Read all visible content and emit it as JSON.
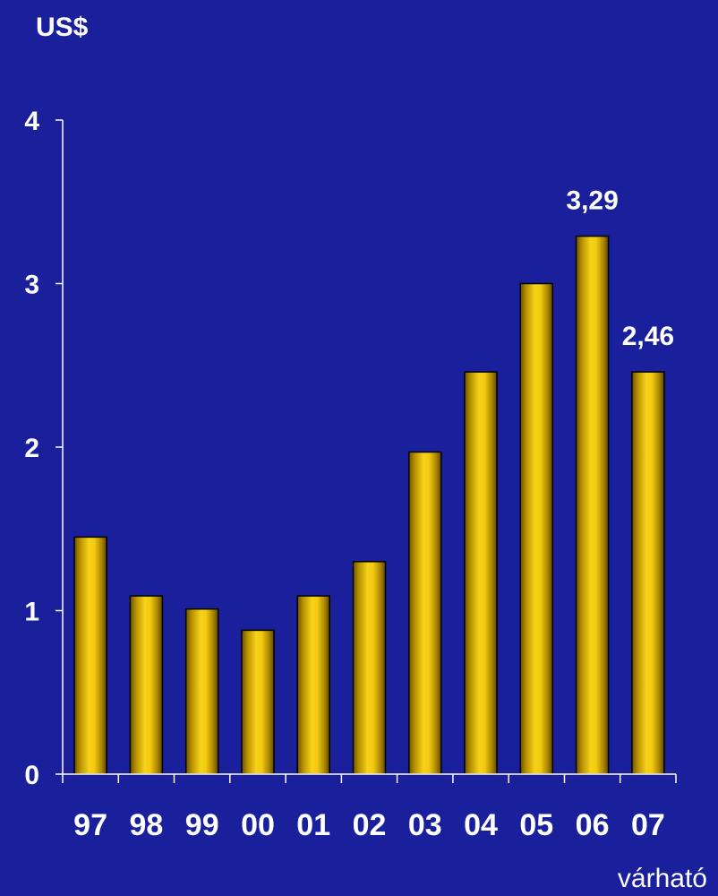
{
  "chart_data": {
    "type": "bar",
    "ylabel": "US$",
    "categories": [
      "97",
      "98",
      "99",
      "00",
      "01",
      "02",
      "03",
      "04",
      "05",
      "06",
      "07"
    ],
    "values": [
      1.45,
      1.09,
      1.01,
      0.88,
      1.09,
      1.3,
      1.97,
      2.46,
      3.0,
      3.29,
      2.46
    ],
    "data_labels": [
      {
        "category": "06",
        "text": "3,29"
      },
      {
        "category": "07",
        "text": "2,46"
      }
    ],
    "ylim": [
      0,
      4
    ],
    "yticks": [
      "0",
      "1",
      "2",
      "3",
      "4"
    ],
    "note": "várható",
    "grid": false,
    "colors": {
      "background": "#1a1f9c",
      "bar_light": "#f7d21a",
      "bar_dark": "#6b5200",
      "axis": "#ffffff",
      "text": "#ffffff"
    }
  }
}
